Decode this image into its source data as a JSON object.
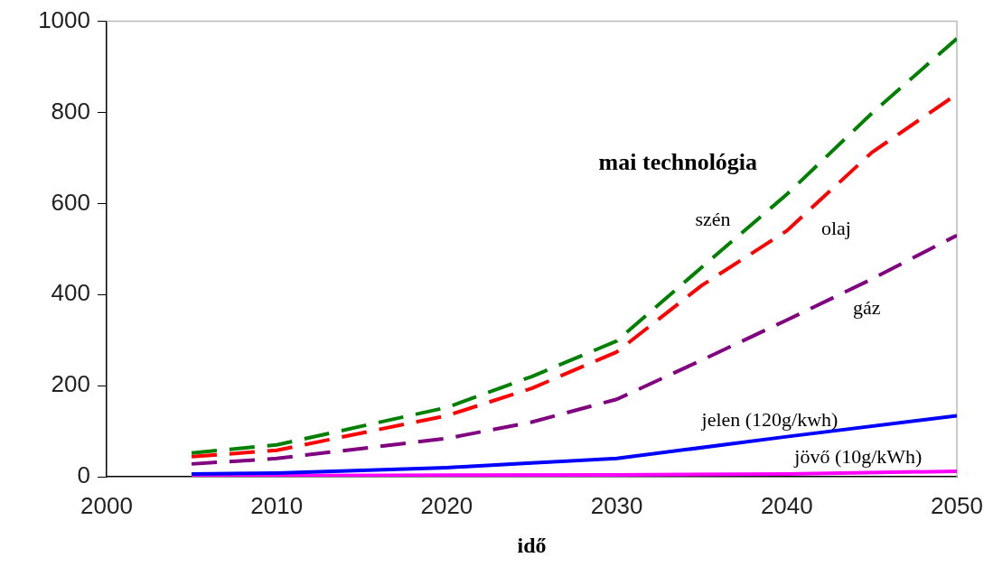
{
  "chart_data": {
    "type": "line",
    "xlabel": "idő",
    "annotations": [
      "mai technológia"
    ],
    "xlim": [
      2000,
      2050
    ],
    "xticks": [
      2000,
      2010,
      2020,
      2030,
      2040,
      2050
    ],
    "ylim": [
      0,
      1000
    ],
    "yticks": [
      0,
      200,
      400,
      600,
      800,
      1000
    ],
    "grid": false,
    "legend": false,
    "marker": "none",
    "series": [
      {
        "name": "szén",
        "color": "#008000",
        "line_style": "dashed",
        "x": [
          2005,
          2010,
          2020,
          2025,
          2030,
          2035,
          2040,
          2045,
          2050
        ],
        "values": [
          52,
          70,
          152,
          220,
          298,
          460,
          620,
          798,
          962
        ]
      },
      {
        "name": "olaj",
        "color": "#ff0000",
        "line_style": "dashed",
        "x": [
          2005,
          2010,
          2020,
          2025,
          2030,
          2035,
          2040,
          2045,
          2050
        ],
        "values": [
          44,
          58,
          134,
          194,
          274,
          420,
          540,
          712,
          840
        ]
      },
      {
        "name": "gáz",
        "color": "#800080",
        "line_style": "dashed",
        "x": [
          2005,
          2010,
          2020,
          2025,
          2030,
          2035,
          2040,
          2045,
          2050
        ],
        "values": [
          28,
          40,
          84,
          120,
          170,
          256,
          344,
          434,
          530
        ]
      },
      {
        "name": "jelen (120g/kwh)",
        "color": "#0000ff",
        "line_style": "solid",
        "x": [
          2005,
          2010,
          2020,
          2025,
          2030,
          2040,
          2050
        ],
        "values": [
          6,
          8,
          20,
          30,
          40,
          88,
          134
        ]
      },
      {
        "name": "jövő (10g/kWh)",
        "color": "#ff00ff",
        "line_style": "solid",
        "x": [
          2005,
          2030,
          2040,
          2050
        ],
        "values": [
          2,
          4,
          6,
          12
        ]
      }
    ]
  }
}
